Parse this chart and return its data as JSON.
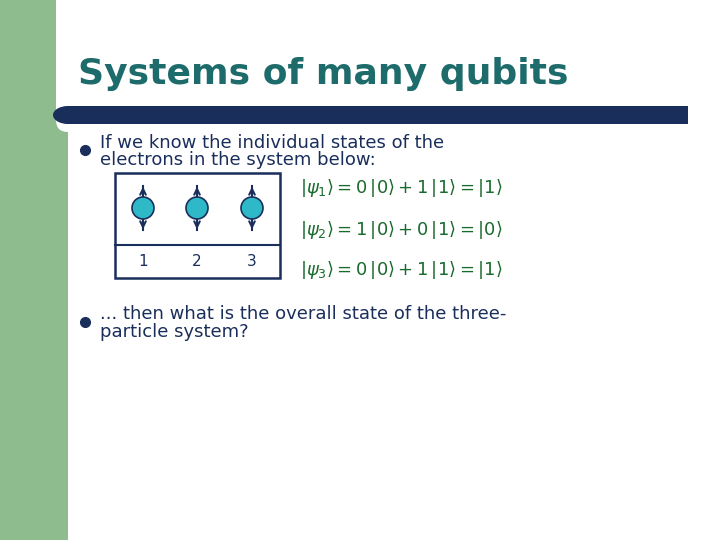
{
  "title": "Systems of many qubits",
  "title_color": "#1e6b6b",
  "title_fontsize": 26,
  "bg_color": "#ffffff",
  "green_bg": "#8fbc8f",
  "dark_blue_bar": "#1a2e5c",
  "bullet1_line1": "If we know the individual states of the",
  "bullet1_line2": "electrons in the system below:",
  "bullet2_line1": "... then what is the overall state of the three-",
  "bullet2_line2": "particle system?",
  "eq1": "$|\\psi_1\\rangle = 0\\,|0\\rangle + 1\\,|1\\rangle = |1\\rangle$",
  "eq2": "$|\\psi_2\\rangle = 1\\,|0\\rangle + 0\\,|1\\rangle = |0\\rangle$",
  "eq3": "$|\\psi_3\\rangle = 0\\,|0\\rangle + 1\\,|1\\rangle = |1\\rangle$",
  "eq_color": "#1a6b2e",
  "text_color": "#1a2e5c",
  "bullet_color": "#1a2e5c",
  "elec_color": "#2eb8c8",
  "elec_outline": "#1a2e5c"
}
